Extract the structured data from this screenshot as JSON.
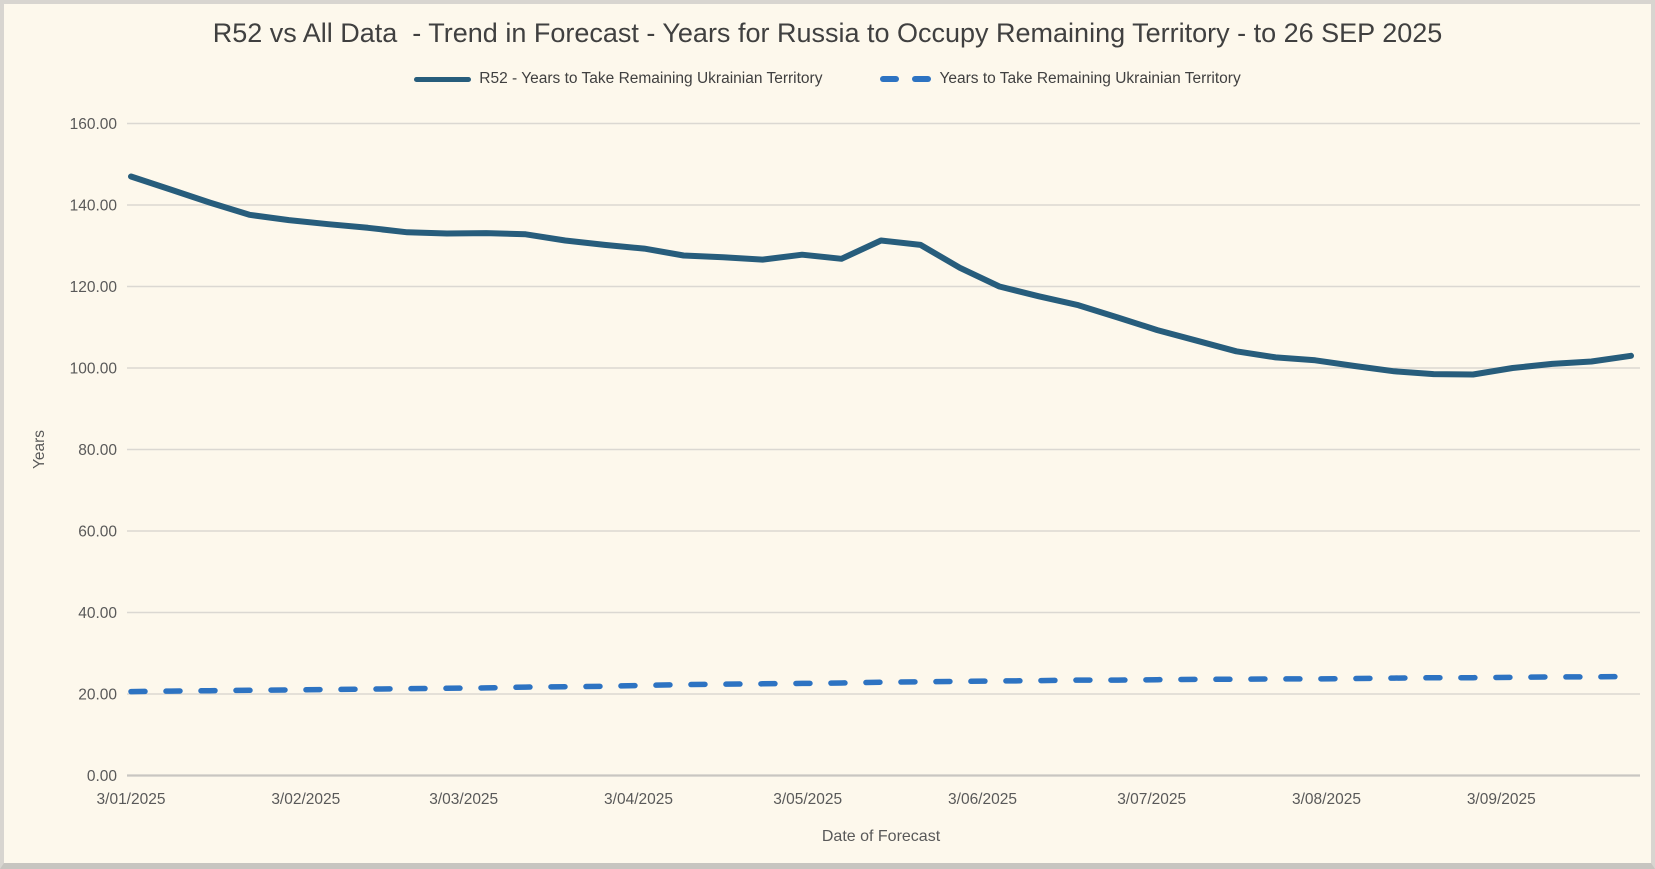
{
  "window": {
    "background_color": "#fdf8ec",
    "border_color": "#d8d5d0"
  },
  "title": {
    "text": "R52 vs All Data  - Trend in Forecast - Years for Russia to Occupy Remaining Territory - to 26 SEP 2025",
    "color": "#404040"
  },
  "legend": {
    "items": [
      {
        "label": "R52 - Years to Take Remaining Ukrainian Territory",
        "style": "solid",
        "color": "#275d7c"
      },
      {
        "label": "Years to Take Remaining Ukrainian Territory",
        "style": "dashed",
        "color": "#2d73c2"
      }
    ]
  },
  "chart_data": {
    "type": "line",
    "title": "R52 vs All Data  - Trend in Forecast - Years for Russia to Occupy Remaining Territory - to 26 SEP 2025",
    "xlabel": "Date of Forecast",
    "ylabel": "Years",
    "ylim": [
      0,
      160
    ],
    "ytick_step": 20,
    "ytick_labels": [
      "0.00",
      "20.00",
      "40.00",
      "60.00",
      "80.00",
      "100.00",
      "120.00",
      "140.00",
      "160.00"
    ],
    "grid": true,
    "legend_position": "top",
    "axis_text_color": "#595959",
    "gridline_color": "#dbd8d2",
    "axisline_color": "#c9c6c1",
    "xticks": [
      {
        "label": "3/01/2025",
        "date": "2025-01-03"
      },
      {
        "label": "3/02/2025",
        "date": "2025-02-03"
      },
      {
        "label": "3/03/2025",
        "date": "2025-03-03"
      },
      {
        "label": "3/04/2025",
        "date": "2025-04-03"
      },
      {
        "label": "3/05/2025",
        "date": "2025-05-03"
      },
      {
        "label": "3/06/2025",
        "date": "2025-06-03"
      },
      {
        "label": "3/07/2025",
        "date": "2025-07-03"
      },
      {
        "label": "3/08/2025",
        "date": "2025-08-03"
      },
      {
        "label": "3/09/2025",
        "date": "2025-09-03"
      }
    ],
    "x_dates": [
      "2025-01-03",
      "2025-01-10",
      "2025-01-17",
      "2025-01-24",
      "2025-01-31",
      "2025-02-07",
      "2025-02-14",
      "2025-02-21",
      "2025-02-28",
      "2025-03-07",
      "2025-03-14",
      "2025-03-21",
      "2025-03-28",
      "2025-04-04",
      "2025-04-11",
      "2025-04-18",
      "2025-04-25",
      "2025-05-02",
      "2025-05-09",
      "2025-05-16",
      "2025-05-23",
      "2025-05-30",
      "2025-06-06",
      "2025-06-13",
      "2025-06-20",
      "2025-06-27",
      "2025-07-04",
      "2025-07-11",
      "2025-07-18",
      "2025-07-25",
      "2025-08-01",
      "2025-08-08",
      "2025-08-15",
      "2025-08-22",
      "2025-08-29",
      "2025-09-05",
      "2025-09-12",
      "2025-09-19",
      "2025-09-26"
    ],
    "series": [
      {
        "name": "R52 - Years to Take Remaining Ukrainian Territory",
        "color": "#275d7c",
        "dash": false,
        "values": [
          147.0,
          143.8,
          140.6,
          137.6,
          136.3,
          135.3,
          134.4,
          133.3,
          133.0,
          133.1,
          132.8,
          131.3,
          130.2,
          129.3,
          127.6,
          127.2,
          126.6,
          127.8,
          126.8,
          131.3,
          130.2,
          124.6,
          120.0,
          117.6,
          115.4,
          112.4,
          109.3,
          106.7,
          104.1,
          102.6,
          101.9,
          100.5,
          99.2,
          98.5,
          98.4,
          100.0,
          101.0,
          101.6,
          103.0
        ]
      },
      {
        "name": "Years to Take Remaining Ukrainian Territory",
        "color": "#2d73c2",
        "dash": true,
        "values": [
          20.6,
          20.7,
          20.8,
          20.9,
          21.0,
          21.1,
          21.2,
          21.3,
          21.4,
          21.5,
          21.7,
          21.8,
          21.9,
          22.1,
          22.3,
          22.4,
          22.5,
          22.6,
          22.7,
          22.9,
          23.0,
          23.1,
          23.2,
          23.3,
          23.4,
          23.4,
          23.5,
          23.6,
          23.6,
          23.7,
          23.7,
          23.8,
          23.9,
          24.0,
          24.0,
          24.1,
          24.2,
          24.2,
          24.3
        ]
      }
    ]
  }
}
